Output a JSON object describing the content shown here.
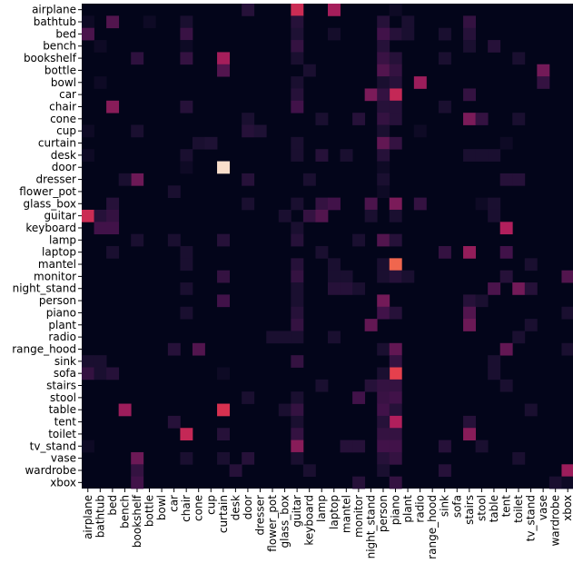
{
  "chart_data": {
    "type": "heatmap",
    "title": "",
    "xlabel": "",
    "ylabel": "",
    "colormap": "rocket",
    "colors": {
      "low": "#03051a",
      "mid": "#b11f5c",
      "high": "#faebdd"
    },
    "rows": [
      "airplane",
      "bathtub",
      "bed",
      "bench",
      "bookshelf",
      "bottle",
      "bowl",
      "car",
      "chair",
      "cone",
      "cup",
      "curtain",
      "desk",
      "door",
      "dresser",
      "flower_pot",
      "glass_box",
      "guitar",
      "keyboard",
      "lamp",
      "laptop",
      "mantel",
      "monitor",
      "night_stand",
      "person",
      "piano",
      "plant",
      "radio",
      "range_hood",
      "sink",
      "sofa",
      "stairs",
      "stool",
      "table",
      "tent",
      "toilet",
      "tv_stand",
      "vase",
      "wardrobe",
      "xbox"
    ],
    "columns": [
      "airplane",
      "bathtub",
      "bed",
      "bench",
      "bookshelf",
      "bottle",
      "bowl",
      "car",
      "chair",
      "cone",
      "cup",
      "curtain",
      "desk",
      "door",
      "dresser",
      "flower_pot",
      "glass_box",
      "guitar",
      "keyboard",
      "lamp",
      "laptop",
      "mantel",
      "monitor",
      "night_stand",
      "person",
      "piano",
      "plant",
      "radio",
      "range_hood",
      "sink",
      "sofa",
      "stairs",
      "stool",
      "table",
      "tent",
      "toilet",
      "tv_stand",
      "vase",
      "wardrobe",
      "xbox"
    ],
    "value_range": [
      0,
      1
    ],
    "cells": [
      [
        0,
        17,
        0.62
      ],
      [
        0,
        20,
        0.52
      ],
      [
        0,
        13,
        0.15
      ],
      [
        0,
        25,
        0.05
      ],
      [
        1,
        2,
        0.3
      ],
      [
        1,
        0,
        0.05
      ],
      [
        1,
        5,
        0.05
      ],
      [
        1,
        8,
        0.1
      ],
      [
        1,
        17,
        0.15
      ],
      [
        1,
        24,
        0.15
      ],
      [
        1,
        26,
        0.1
      ],
      [
        1,
        31,
        0.2
      ],
      [
        2,
        0,
        0.28
      ],
      [
        2,
        8,
        0.22
      ],
      [
        2,
        17,
        0.12
      ],
      [
        2,
        20,
        0.08
      ],
      [
        2,
        25,
        0.15
      ],
      [
        2,
        24,
        0.25
      ],
      [
        2,
        26,
        0.1
      ],
      [
        2,
        29,
        0.1
      ],
      [
        2,
        31,
        0.15
      ],
      [
        3,
        17,
        0.2
      ],
      [
        3,
        1,
        0.05
      ],
      [
        3,
        8,
        0.05
      ],
      [
        3,
        24,
        0.15
      ],
      [
        3,
        31,
        0.1
      ],
      [
        3,
        33,
        0.15
      ],
      [
        4,
        8,
        0.2
      ],
      [
        4,
        11,
        0.52
      ],
      [
        4,
        4,
        0.18
      ],
      [
        4,
        17,
        0.1
      ],
      [
        4,
        24,
        0.22
      ],
      [
        4,
        25,
        0.15
      ],
      [
        4,
        29,
        0.1
      ],
      [
        4,
        35,
        0.1
      ],
      [
        5,
        11,
        0.3
      ],
      [
        5,
        18,
        0.1
      ],
      [
        5,
        24,
        0.3
      ],
      [
        5,
        25,
        0.2
      ],
      [
        5,
        37,
        0.4
      ],
      [
        6,
        1,
        0.05
      ],
      [
        6,
        17,
        0.1
      ],
      [
        6,
        24,
        0.1
      ],
      [
        6,
        25,
        0.15
      ],
      [
        6,
        27,
        0.5
      ],
      [
        6,
        37,
        0.2
      ],
      [
        7,
        17,
        0.15
      ],
      [
        7,
        23,
        0.42
      ],
      [
        7,
        25,
        0.6
      ],
      [
        7,
        24,
        0.2
      ],
      [
        7,
        31,
        0.2
      ],
      [
        8,
        2,
        0.45
      ],
      [
        8,
        8,
        0.15
      ],
      [
        8,
        17,
        0.25
      ],
      [
        8,
        24,
        0.15
      ],
      [
        8,
        25,
        0.15
      ],
      [
        8,
        29,
        0.1
      ],
      [
        9,
        13,
        0.1
      ],
      [
        9,
        19,
        0.1
      ],
      [
        9,
        22,
        0.15
      ],
      [
        9,
        24,
        0.2
      ],
      [
        9,
        25,
        0.15
      ],
      [
        9,
        31,
        0.42
      ],
      [
        9,
        32,
        0.2
      ],
      [
        9,
        35,
        0.1
      ],
      [
        10,
        0,
        0.05
      ],
      [
        10,
        4,
        0.1
      ],
      [
        10,
        13,
        0.15
      ],
      [
        10,
        14,
        0.12
      ],
      [
        10,
        24,
        0.1
      ],
      [
        10,
        27,
        0.05
      ],
      [
        11,
        9,
        0.1
      ],
      [
        11,
        10,
        0.12
      ],
      [
        11,
        17,
        0.1
      ],
      [
        11,
        24,
        0.35
      ],
      [
        11,
        25,
        0.2
      ],
      [
        11,
        34,
        0.05
      ],
      [
        12,
        0,
        0.05
      ],
      [
        12,
        8,
        0.1
      ],
      [
        12,
        17,
        0.1
      ],
      [
        12,
        19,
        0.15
      ],
      [
        12,
        21,
        0.1
      ],
      [
        12,
        24,
        0.15
      ],
      [
        12,
        31,
        0.1
      ],
      [
        12,
        32,
        0.1
      ],
      [
        12,
        33,
        0.1
      ],
      [
        13,
        11,
        0.98
      ],
      [
        13,
        8,
        0.05
      ],
      [
        13,
        24,
        0.05
      ],
      [
        14,
        4,
        0.38
      ],
      [
        14,
        3,
        0.1
      ],
      [
        14,
        13,
        0.15
      ],
      [
        14,
        18,
        0.1
      ],
      [
        14,
        24,
        0.1
      ],
      [
        14,
        34,
        0.15
      ],
      [
        14,
        35,
        0.15
      ],
      [
        15,
        7,
        0.1
      ],
      [
        15,
        24,
        0.05
      ],
      [
        16,
        2,
        0.15
      ],
      [
        16,
        13,
        0.1
      ],
      [
        16,
        17,
        0.1
      ],
      [
        16,
        19,
        0.2
      ],
      [
        16,
        20,
        0.25
      ],
      [
        16,
        23,
        0.28
      ],
      [
        16,
        25,
        0.42
      ],
      [
        16,
        27,
        0.2
      ],
      [
        16,
        32,
        0.05
      ],
      [
        16,
        33,
        0.1
      ],
      [
        17,
        0,
        0.62
      ],
      [
        17,
        1,
        0.15
      ],
      [
        17,
        2,
        0.2
      ],
      [
        17,
        16,
        0.1
      ],
      [
        17,
        18,
        0.2
      ],
      [
        17,
        19,
        0.3
      ],
      [
        17,
        23,
        0.1
      ],
      [
        17,
        25,
        0.1
      ],
      [
        17,
        33,
        0.1
      ],
      [
        18,
        2,
        0.25
      ],
      [
        18,
        1,
        0.25
      ],
      [
        18,
        34,
        0.55
      ],
      [
        18,
        17,
        0.1
      ],
      [
        19,
        4,
        0.1
      ],
      [
        19,
        7,
        0.1
      ],
      [
        19,
        11,
        0.15
      ],
      [
        19,
        17,
        0.15
      ],
      [
        19,
        24,
        0.3
      ],
      [
        19,
        25,
        0.15
      ],
      [
        19,
        22,
        0.1
      ],
      [
        20,
        2,
        0.1
      ],
      [
        20,
        8,
        0.1
      ],
      [
        20,
        19,
        0.1
      ],
      [
        20,
        29,
        0.2
      ],
      [
        20,
        31,
        0.48
      ],
      [
        20,
        34,
        0.25
      ],
      [
        21,
        8,
        0.1
      ],
      [
        21,
        17,
        0.15
      ],
      [
        21,
        20,
        0.1
      ],
      [
        21,
        24,
        0.1
      ],
      [
        21,
        25,
        0.78
      ],
      [
        21,
        36,
        0.1
      ],
      [
        22,
        11,
        0.2
      ],
      [
        22,
        17,
        0.2
      ],
      [
        22,
        20,
        0.1
      ],
      [
        22,
        21,
        0.1
      ],
      [
        22,
        24,
        0.1
      ],
      [
        22,
        25,
        0.15
      ],
      [
        22,
        26,
        0.1
      ],
      [
        22,
        34,
        0.15
      ],
      [
        22,
        39,
        0.3
      ],
      [
        23,
        8,
        0.1
      ],
      [
        23,
        17,
        0.1
      ],
      [
        23,
        20,
        0.15
      ],
      [
        23,
        21,
        0.15
      ],
      [
        23,
        22,
        0.1
      ],
      [
        23,
        33,
        0.28
      ],
      [
        23,
        35,
        0.4
      ],
      [
        23,
        36,
        0.15
      ],
      [
        24,
        11,
        0.25
      ],
      [
        24,
        17,
        0.1
      ],
      [
        24,
        24,
        0.4
      ],
      [
        24,
        31,
        0.15
      ],
      [
        24,
        32,
        0.1
      ],
      [
        25,
        8,
        0.1
      ],
      [
        25,
        17,
        0.15
      ],
      [
        25,
        24,
        0.25
      ],
      [
        25,
        25,
        0.15
      ],
      [
        25,
        31,
        0.3
      ],
      [
        25,
        39,
        0.1
      ],
      [
        26,
        17,
        0.2
      ],
      [
        26,
        23,
        0.35
      ],
      [
        26,
        31,
        0.38
      ],
      [
        26,
        36,
        0.1
      ],
      [
        27,
        15,
        0.1
      ],
      [
        27,
        16,
        0.1
      ],
      [
        27,
        17,
        0.1
      ],
      [
        27,
        20,
        0.1
      ],
      [
        27,
        35,
        0.1
      ],
      [
        28,
        7,
        0.15
      ],
      [
        28,
        9,
        0.3
      ],
      [
        28,
        24,
        0.1
      ],
      [
        28,
        25,
        0.35
      ],
      [
        28,
        34,
        0.35
      ],
      [
        28,
        39,
        0.1
      ],
      [
        29,
        0,
        0.1
      ],
      [
        29,
        1,
        0.1
      ],
      [
        29,
        17,
        0.2
      ],
      [
        29,
        25,
        0.2
      ],
      [
        29,
        33,
        0.1
      ],
      [
        30,
        0,
        0.2
      ],
      [
        30,
        1,
        0.1
      ],
      [
        30,
        2,
        0.15
      ],
      [
        30,
        11,
        0.05
      ],
      [
        30,
        25,
        0.7
      ],
      [
        30,
        24,
        0.1
      ],
      [
        30,
        33,
        0.1
      ],
      [
        31,
        19,
        0.1
      ],
      [
        31,
        23,
        0.15
      ],
      [
        31,
        24,
        0.2
      ],
      [
        31,
        25,
        0.2
      ],
      [
        31,
        34,
        0.1
      ],
      [
        32,
        13,
        0.1
      ],
      [
        32,
        17,
        0.1
      ],
      [
        32,
        22,
        0.25
      ],
      [
        32,
        24,
        0.22
      ],
      [
        32,
        25,
        0.25
      ],
      [
        33,
        3,
        0.5
      ],
      [
        33,
        11,
        0.65
      ],
      [
        33,
        16,
        0.1
      ],
      [
        33,
        17,
        0.2
      ],
      [
        33,
        24,
        0.25
      ],
      [
        33,
        25,
        0.15
      ],
      [
        33,
        36,
        0.1
      ],
      [
        34,
        7,
        0.15
      ],
      [
        34,
        17,
        0.1
      ],
      [
        34,
        25,
        0.55
      ],
      [
        34,
        24,
        0.15
      ],
      [
        34,
        31,
        0.15
      ],
      [
        35,
        8,
        0.6
      ],
      [
        35,
        11,
        0.15
      ],
      [
        35,
        17,
        0.2
      ],
      [
        35,
        24,
        0.2
      ],
      [
        35,
        25,
        0.2
      ],
      [
        35,
        31,
        0.45
      ],
      [
        36,
        0,
        0.05
      ],
      [
        36,
        17,
        0.45
      ],
      [
        36,
        21,
        0.15
      ],
      [
        36,
        22,
        0.15
      ],
      [
        36,
        24,
        0.25
      ],
      [
        36,
        25,
        0.25
      ],
      [
        36,
        29,
        0.15
      ],
      [
        36,
        32,
        0.1
      ],
      [
        37,
        4,
        0.38
      ],
      [
        37,
        8,
        0.1
      ],
      [
        37,
        11,
        0.1
      ],
      [
        37,
        13,
        0.15
      ],
      [
        37,
        17,
        0.1
      ],
      [
        37,
        24,
        0.15
      ],
      [
        37,
        25,
        0.2
      ],
      [
        37,
        35,
        0.1
      ],
      [
        38,
        4,
        0.2
      ],
      [
        38,
        12,
        0.15
      ],
      [
        38,
        18,
        0.1
      ],
      [
        38,
        24,
        0.1
      ],
      [
        38,
        29,
        0.15
      ],
      [
        38,
        39,
        0.5
      ],
      [
        39,
        4,
        0.25
      ],
      [
        39,
        22,
        0.15
      ],
      [
        39,
        25,
        0.2
      ],
      [
        39,
        38,
        0.1
      ],
      [
        39,
        39,
        0.05
      ]
    ]
  }
}
